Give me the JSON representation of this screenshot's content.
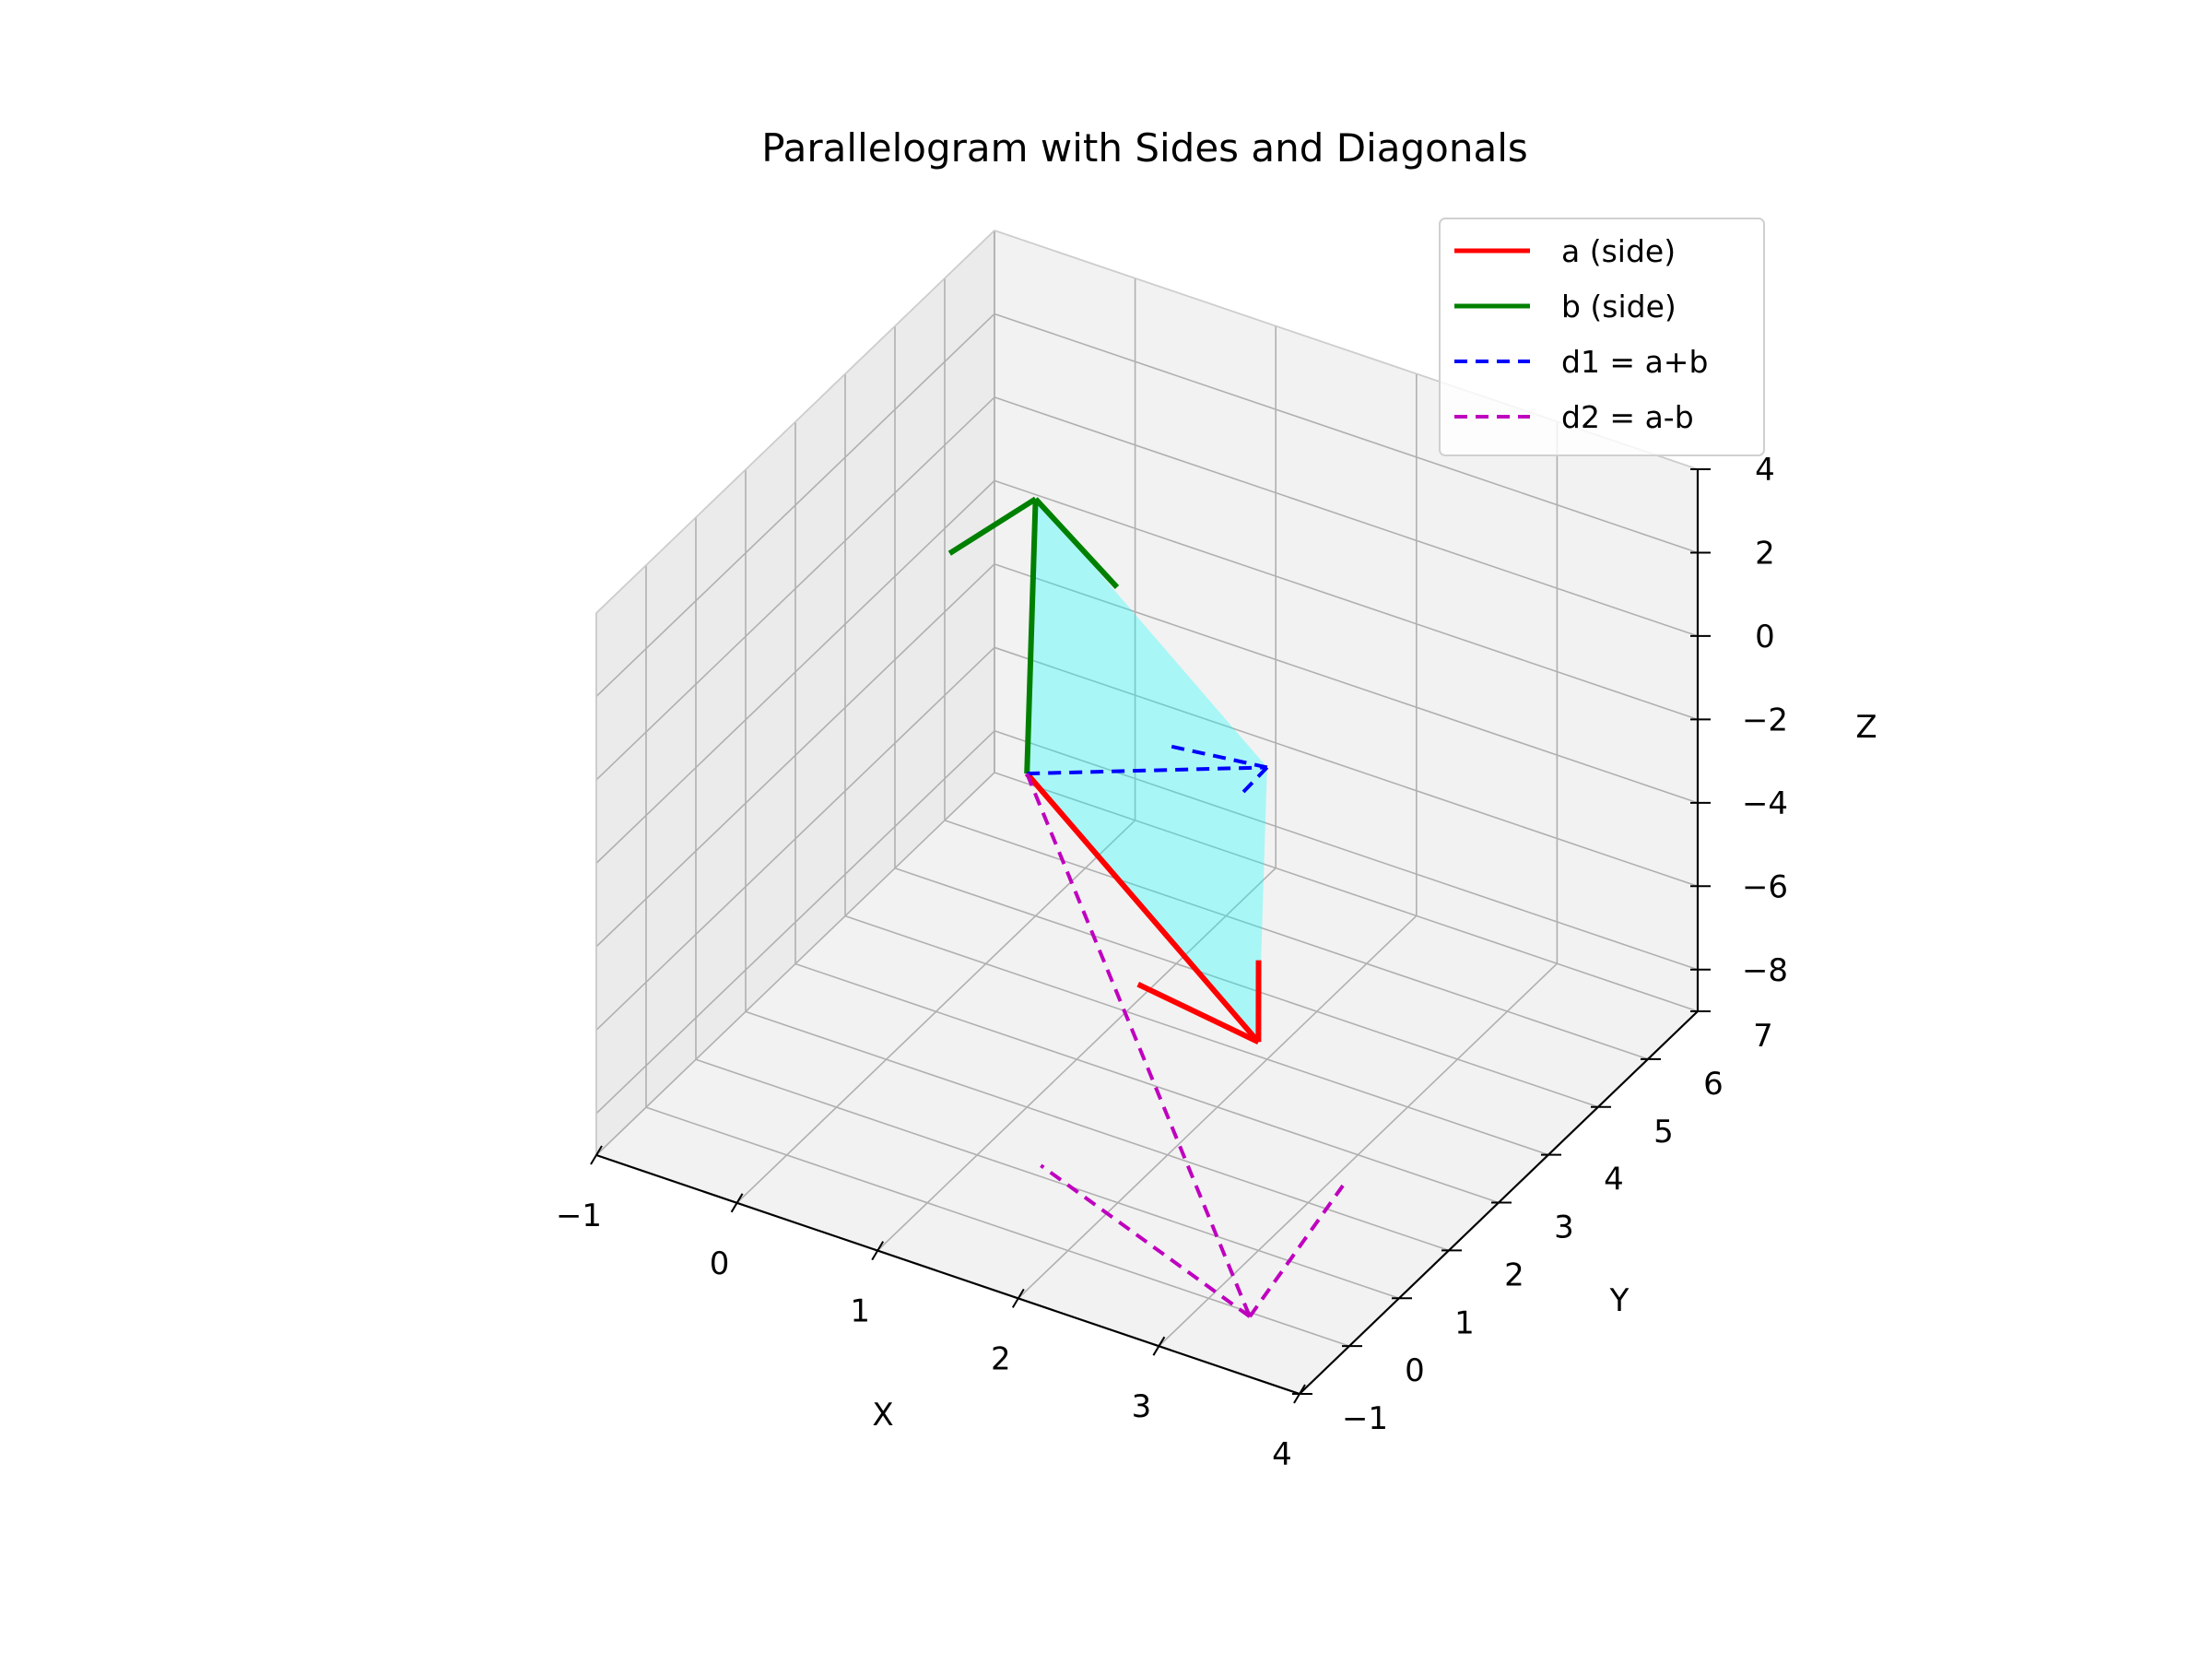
{
  "chart_data": {
    "type": "line",
    "projection": "3d",
    "title": "Parallelogram with Sides and Diagonals",
    "xlabel": "X",
    "ylabel": "Y",
    "zlabel": "Z",
    "xlim": [
      -1,
      4
    ],
    "ylim": [
      -1,
      7
    ],
    "zlim": [
      -9,
      4
    ],
    "xticks": [
      "−1",
      "0",
      "1",
      "2",
      "3",
      "4"
    ],
    "yticks": [
      "−1",
      "0",
      "1",
      "2",
      "3",
      "4",
      "5",
      "6",
      "7"
    ],
    "zticks": [
      "−8",
      "−6",
      "−4",
      "−2",
      "0",
      "2",
      "4"
    ],
    "grid": true,
    "legend_position": "top-right",
    "origin": [
      1,
      2,
      -1
    ],
    "series": [
      {
        "name": "a (side)",
        "color": "#ff0000",
        "style": "solid",
        "from": [
          1,
          2,
          -1
        ],
        "vector": [
          2,
          -1,
          -3
        ]
      },
      {
        "name": "b (side)",
        "color": "#008000",
        "style": "solid",
        "from": [
          1,
          2,
          -1
        ],
        "vector": [
          -1,
          3,
          2
        ]
      },
      {
        "name": "d1 = a+b",
        "color": "#0000ff",
        "style": "dashed",
        "from": [
          1,
          2,
          -1
        ],
        "vector": [
          1,
          2,
          -1
        ]
      },
      {
        "name": "d2 = a-b",
        "color": "#bf00bf",
        "style": "dashed",
        "from": [
          1,
          2,
          -1
        ],
        "vector": [
          3,
          -4,
          -5
        ]
      }
    ],
    "fill": {
      "name": "parallelogram",
      "color": "#00ffff",
      "opacity": 0.3
    }
  }
}
